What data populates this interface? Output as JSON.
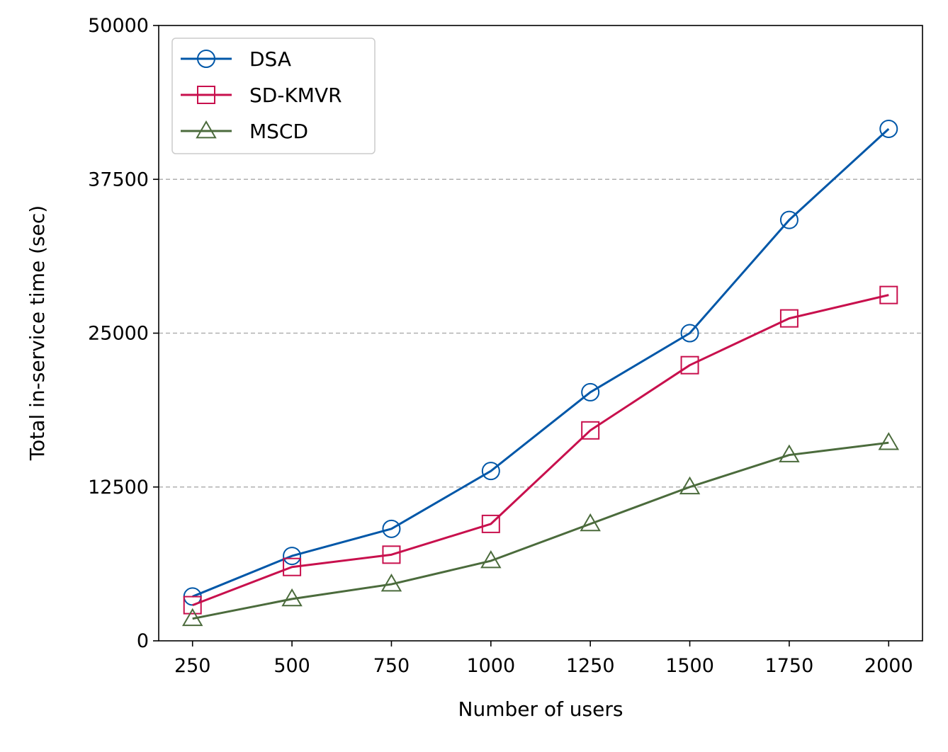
{
  "chart_data": {
    "type": "line",
    "title": "",
    "xlabel": "Number of users",
    "ylabel": "Total in-service time (sec)",
    "x": [
      250,
      500,
      750,
      1000,
      1250,
      1500,
      1750,
      2000
    ],
    "x_tick_labels": [
      "250",
      "500",
      "750",
      "1000",
      "1250",
      "1500",
      "1750",
      "2000"
    ],
    "xlim": [
      165,
      2085
    ],
    "ylim": [
      0,
      50000
    ],
    "y_ticks": [
      0,
      12500,
      25000,
      37500,
      50000
    ],
    "y_tick_labels": [
      "0",
      "12500",
      "25000",
      "37500",
      "50000"
    ],
    "grid": "horizontal dashed at y ticks",
    "legend_position": "upper-left",
    "series": [
      {
        "name": "DSA",
        "color": "#0057a8",
        "marker": "circle",
        "values": [
          3600,
          6900,
          9100,
          13800,
          20200,
          25000,
          34200,
          41600
        ]
      },
      {
        "name": "SD-KMVR",
        "color": "#c8104d",
        "marker": "square",
        "values": [
          2900,
          6000,
          7000,
          9500,
          17100,
          22400,
          26200,
          28100
        ]
      },
      {
        "name": "MSCD",
        "color": "#4b6b3c",
        "marker": "triangle",
        "values": [
          1800,
          3400,
          4600,
          6500,
          9500,
          12500,
          15100,
          16100
        ]
      }
    ]
  }
}
